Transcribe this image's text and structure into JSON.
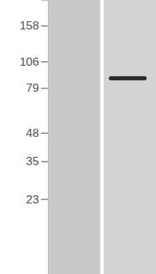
{
  "chart_data": {
    "type": "blot",
    "categories": [
      null,
      null
    ],
    "values": [
      null,
      88
    ],
    "color": "#2b2b2b",
    "ylim": [
      10,
      210
    ],
    "yticks": [
      158,
      106,
      79,
      48,
      35,
      23
    ],
    "log": "y",
    "tick_labels": "y"
  }
}
